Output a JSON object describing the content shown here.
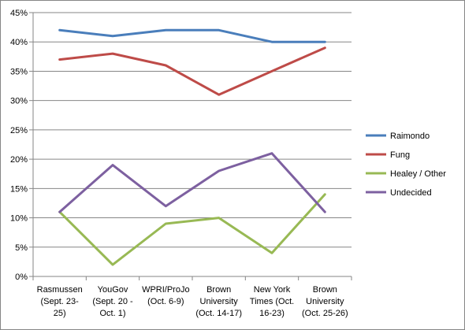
{
  "chart_data": {
    "type": "line",
    "categories": [
      [
        "Rasmussen",
        "(Sept. 23-",
        "25)"
      ],
      [
        "YouGov",
        "(Sept. 20 -",
        "Oct. 1)"
      ],
      [
        "WPRI/ProJo",
        "(Oct. 6-9)"
      ],
      [
        "Brown",
        "University",
        "(Oct. 14-17)"
      ],
      [
        "New York",
        "Times (Oct.",
        "16-23)"
      ],
      [
        "Brown",
        "University",
        "(Oct. 25-26)"
      ]
    ],
    "series": [
      {
        "name": "Raimondo",
        "color": "#4a7ebb",
        "values": [
          42,
          41,
          42,
          42,
          40,
          40
        ]
      },
      {
        "name": "Fung",
        "color": "#be4b48",
        "values": [
          37,
          38,
          36,
          31,
          35,
          39
        ]
      },
      {
        "name": "Healey / Other",
        "color": "#98b954",
        "values": [
          11,
          2,
          9,
          10,
          4,
          14
        ]
      },
      {
        "name": "Undecided",
        "color": "#7d60a0",
        "values": [
          11,
          19,
          12,
          18,
          21,
          11
        ]
      }
    ],
    "ylim": [
      0,
      45
    ],
    "yticks": [
      "0%",
      "5%",
      "10%",
      "15%",
      "20%",
      "25%",
      "30%",
      "35%",
      "40%",
      "45%"
    ],
    "grid": true,
    "legend": "right",
    "title": "",
    "xlabel": "",
    "ylabel": ""
  }
}
